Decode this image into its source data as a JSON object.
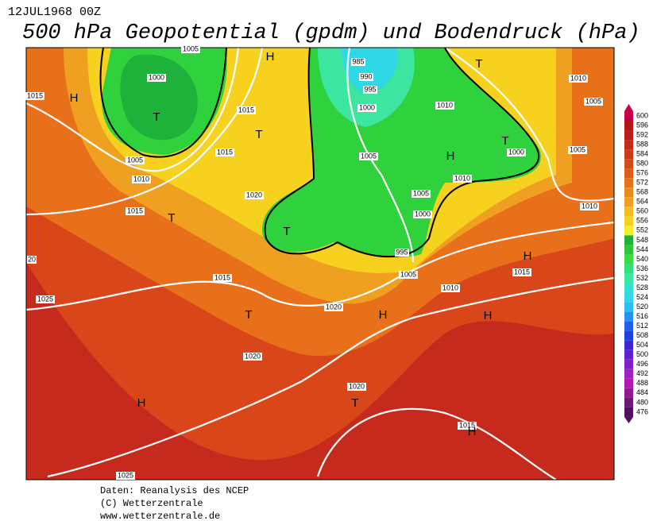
{
  "header": {
    "date": "12JUL1968 00Z",
    "title": "500 hPa Geopotential (gpdm) und Bodendruck (hPa)"
  },
  "legend": {
    "labels": [
      "600",
      "596",
      "592",
      "588",
      "584",
      "580",
      "576",
      "572",
      "568",
      "564",
      "560",
      "556",
      "552",
      "548",
      "544",
      "540",
      "536",
      "532",
      "528",
      "524",
      "520",
      "516",
      "512",
      "508",
      "504",
      "500",
      "496",
      "492",
      "488",
      "484",
      "480",
      "476"
    ]
  },
  "map": {
    "labels": [
      "H",
      "T",
      "1000",
      "1005",
      "1015",
      "1005",
      "1010",
      "1015",
      "T",
      "1015",
      "1020",
      "T",
      "1015",
      "T",
      "1005",
      "985",
      "990",
      "995",
      "1000",
      "1010",
      "T",
      "1010",
      "1005",
      "H",
      "T",
      "1000",
      "1005",
      "1010",
      "1010",
      "1005",
      "1000",
      "995",
      "1005",
      "H",
      "1015",
      "1015",
      "T",
      "1020",
      "H",
      "1010",
      "H",
      "1020",
      "1025",
      "20",
      "H",
      "T",
      "1020",
      "1015",
      "H",
      "1025",
      "H"
    ]
  },
  "footer": {
    "lines": [
      "Daten: Reanalysis des NCEP",
      "(C) Wetterzentrale",
      "www.wetterzentrale.de"
    ]
  }
}
